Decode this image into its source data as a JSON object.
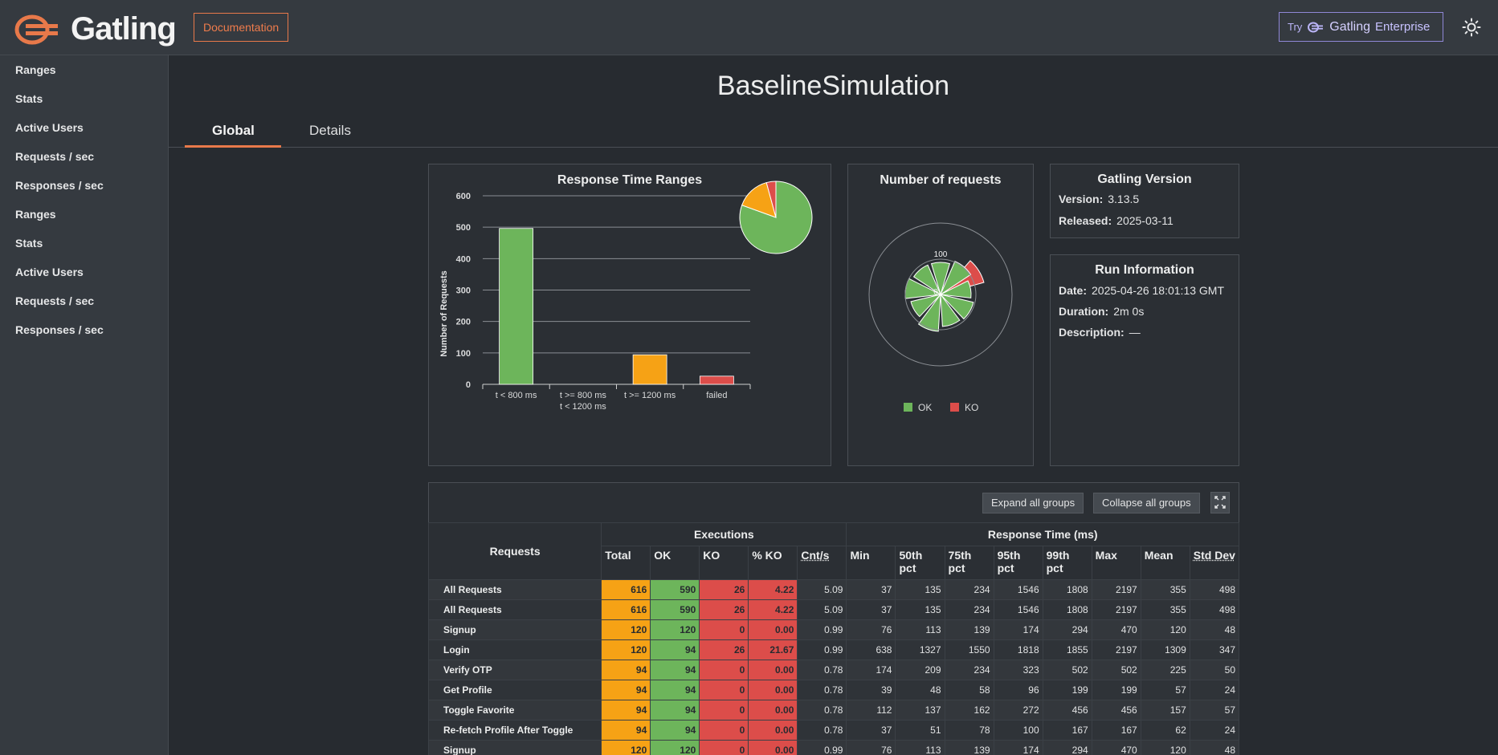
{
  "header": {
    "logo_text": "Gatling",
    "documentation_label": "Documentation",
    "enterprise": {
      "try_label": "Try",
      "brand_label": "Gatling",
      "product_label": "Enterprise"
    },
    "accent_color": "#e8794a"
  },
  "sidebar": {
    "items": [
      {
        "label": "Ranges"
      },
      {
        "label": "Stats"
      },
      {
        "label": "Active Users"
      },
      {
        "label": "Requests / sec"
      },
      {
        "label": "Responses / sec"
      },
      {
        "label": "Ranges"
      },
      {
        "label": "Stats"
      },
      {
        "label": "Active Users"
      },
      {
        "label": "Requests / sec"
      },
      {
        "label": "Responses / sec"
      }
    ]
  },
  "page_title": "BaselineSimulation",
  "tabs": [
    {
      "label": "Global",
      "active": true
    },
    {
      "label": "Details",
      "active": false
    }
  ],
  "chart_data": [
    {
      "type": "bar",
      "title": "Response Time Ranges",
      "ylabel": "Number of Requests",
      "xlabel": "",
      "categories": [
        "t < 800 ms",
        "t >= 800 ms t < 1200 ms",
        "t >= 1200 ms",
        "failed"
      ],
      "category_lines": [
        [
          "t < 800 ms"
        ],
        [
          "t >= 800 ms",
          "t < 1200 ms"
        ],
        [
          "t >= 1200 ms"
        ],
        [
          "failed"
        ]
      ],
      "values": [
        496,
        0,
        94,
        26
      ],
      "colors": [
        "#6db55b",
        "#f6a215",
        "#f6a215",
        "#dc4d4a"
      ],
      "yticks": [
        0,
        100,
        200,
        300,
        400,
        500,
        600
      ],
      "ylim": [
        0,
        600
      ],
      "grid": true,
      "inset_pie": {
        "values": [
          496,
          0,
          94,
          26
        ],
        "colors": [
          "#6db55b",
          "#f6a215",
          "#f6a215",
          "#dc4d4a"
        ],
        "placement": "top-right"
      }
    },
    {
      "type": "pie",
      "title": "Number of requests",
      "style": "polar-area",
      "series": [
        {
          "name": "OK",
          "color": "#6db55b"
        },
        {
          "name": "KO",
          "color": "#dc4d4a"
        }
      ],
      "radial_ticks": [
        "100",
        "0"
      ],
      "legend": "bottom"
    }
  ],
  "version_panel": {
    "title": "Gatling Version",
    "version_label": "Version:",
    "version_value": "3.13.5",
    "released_label": "Released:",
    "released_value": "2025-03-11"
  },
  "run_panel": {
    "title": "Run Information",
    "date_label": "Date:",
    "date_value": "2025-04-26 18:01:13 GMT",
    "duration_label": "Duration:",
    "duration_value": "2m 0s",
    "description_label": "Description:",
    "description_value": "—"
  },
  "table_controls": {
    "expand_label": "Expand all groups",
    "collapse_label": "Collapse all groups"
  },
  "stats_table": {
    "headers": {
      "requests": "Requests",
      "executions": "Executions",
      "response_time": "Response Time (ms)",
      "total": "Total",
      "ok": "OK",
      "ko": "KO",
      "pct_ko": "% KO",
      "cnt_s": "Cnt/s",
      "min": "Min",
      "p50": "50th pct",
      "p75": "75th pct",
      "p95": "95th pct",
      "p99": "99th pct",
      "max": "Max",
      "mean": "Mean",
      "std": "Std Dev"
    },
    "rows": [
      {
        "name": "All Requests",
        "total": "616",
        "ok": "590",
        "ko": "26",
        "pct_ko": "4.22",
        "cnt": "5.09",
        "min": "37",
        "p50": "135",
        "p75": "234",
        "p95": "1546",
        "p99": "1808",
        "max": "2197",
        "mean": "355",
        "std": "498"
      },
      {
        "name": "All Requests",
        "total": "616",
        "ok": "590",
        "ko": "26",
        "pct_ko": "4.22",
        "cnt": "5.09",
        "min": "37",
        "p50": "135",
        "p75": "234",
        "p95": "1546",
        "p99": "1808",
        "max": "2197",
        "mean": "355",
        "std": "498"
      },
      {
        "name": "Signup",
        "total": "120",
        "ok": "120",
        "ko": "0",
        "pct_ko": "0.00",
        "cnt": "0.99",
        "min": "76",
        "p50": "113",
        "p75": "139",
        "p95": "174",
        "p99": "294",
        "max": "470",
        "mean": "120",
        "std": "48"
      },
      {
        "name": "Login",
        "total": "120",
        "ok": "94",
        "ko": "26",
        "pct_ko": "21.67",
        "cnt": "0.99",
        "min": "638",
        "p50": "1327",
        "p75": "1550",
        "p95": "1818",
        "p99": "1855",
        "max": "2197",
        "mean": "1309",
        "std": "347"
      },
      {
        "name": "Verify OTP",
        "total": "94",
        "ok": "94",
        "ko": "0",
        "pct_ko": "0.00",
        "cnt": "0.78",
        "min": "174",
        "p50": "209",
        "p75": "234",
        "p95": "323",
        "p99": "502",
        "max": "502",
        "mean": "225",
        "std": "50"
      },
      {
        "name": "Get Profile",
        "total": "94",
        "ok": "94",
        "ko": "0",
        "pct_ko": "0.00",
        "cnt": "0.78",
        "min": "39",
        "p50": "48",
        "p75": "58",
        "p95": "96",
        "p99": "199",
        "max": "199",
        "mean": "57",
        "std": "24"
      },
      {
        "name": "Toggle Favorite",
        "total": "94",
        "ok": "94",
        "ko": "0",
        "pct_ko": "0.00",
        "cnt": "0.78",
        "min": "112",
        "p50": "137",
        "p75": "162",
        "p95": "272",
        "p99": "456",
        "max": "456",
        "mean": "157",
        "std": "57"
      },
      {
        "name": "Re-fetch Profile After Toggle",
        "total": "94",
        "ok": "94",
        "ko": "0",
        "pct_ko": "0.00",
        "cnt": "0.78",
        "min": "37",
        "p50": "51",
        "p75": "78",
        "p95": "100",
        "p99": "167",
        "max": "167",
        "mean": "62",
        "std": "24"
      },
      {
        "name": "Signup",
        "total": "120",
        "ok": "120",
        "ko": "0",
        "pct_ko": "0.00",
        "cnt": "0.99",
        "min": "76",
        "p50": "113",
        "p75": "139",
        "p95": "174",
        "p99": "294",
        "max": "470",
        "mean": "120",
        "std": "48"
      }
    ]
  }
}
